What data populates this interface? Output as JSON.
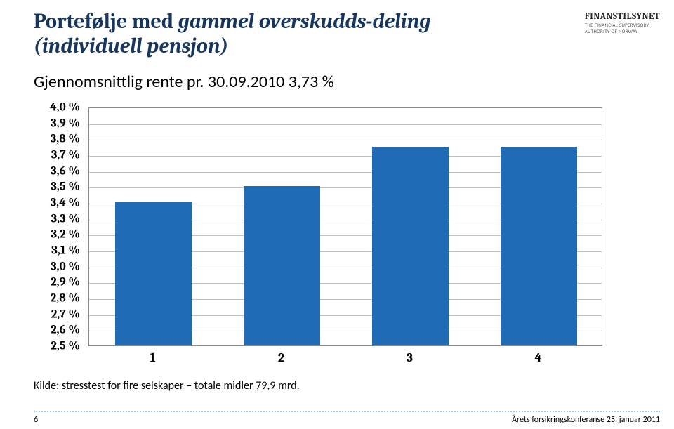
{
  "header": {
    "title_pre": "Portefølje med ",
    "title_italic": "gammel overskudds-deling",
    "title_post": " ",
    "title_italic2": "(individuell pensjon)",
    "subtitle": "Gjennomsnittlig rente pr. 30.09.2010 3,73 %"
  },
  "logo": {
    "main": "FINANSTILSYNET",
    "sub1": "THE FINANCIAL SUPERVISORY",
    "sub2": "AUTHORITY OF NORWAY"
  },
  "chart": {
    "type": "bar",
    "categories": [
      "1",
      "2",
      "3",
      "4"
    ],
    "values": [
      3.4,
      3.5,
      3.75,
      3.75
    ],
    "bar_color": "#1f6bb5",
    "bar_width": 0.6,
    "ylim_min": 2.5,
    "ylim_max": 4.0,
    "ytick_step": 0.1,
    "yticks": [
      "4,0 %",
      "3,9 %",
      "3,8 %",
      "3,7 %",
      "3,6 %",
      "3,5 %",
      "3,4 %",
      "3,3 %",
      "3,2 %",
      "3,1 %",
      "3,0 %",
      "2,9 %",
      "2,8 %",
      "2,7 %",
      "2,6 %",
      "2,5 %"
    ],
    "ytick_values": [
      4.0,
      3.9,
      3.8,
      3.7,
      3.6,
      3.5,
      3.4,
      3.3,
      3.2,
      3.1,
      3.0,
      2.9,
      2.8,
      2.7,
      2.6,
      2.5
    ],
    "grid_color": "#bfbfbf",
    "border_color": "#888888",
    "background_color": "#ffffff",
    "label_font": "Cambria",
    "label_fontsize": 17
  },
  "source_text": "Kilde: stresstest for fire selskaper – totale midler 79,9 mrd.",
  "footer": {
    "page": "6",
    "right": "Årets forsikringskonferanse 25. januar 2011"
  }
}
